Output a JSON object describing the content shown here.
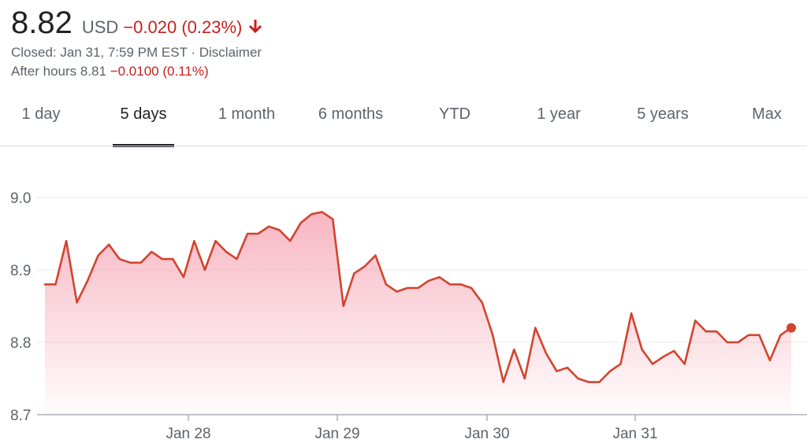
{
  "quote": {
    "price": "8.82",
    "currency": "USD",
    "change": "−0.020 (0.23%)",
    "closed_label": "Closed: Jan 31, 7:59 PM EST",
    "separator": " · ",
    "disclaimer": "Disclaimer",
    "after_hours_label": "After hours 8.81",
    "after_hours_change": "−0.0100 (0.11%)",
    "negative_color": "#c5221f"
  },
  "tabs": [
    {
      "label": "1 day"
    },
    {
      "label": "5 days",
      "active": true
    },
    {
      "label": "1 month"
    },
    {
      "label": "6 months"
    },
    {
      "label": "YTD"
    },
    {
      "label": "1 year"
    },
    {
      "label": "5 years"
    },
    {
      "label": "Max"
    }
  ],
  "icons": {
    "change_arrow": "arrow-down-icon"
  },
  "chart_data": {
    "type": "area",
    "title": "",
    "xlabel": "",
    "ylabel": "",
    "x_tick_labels": [
      "Jan 28",
      "Jan 29",
      "Jan 30",
      "Jan 31"
    ],
    "y_tick_labels": [
      "8.7",
      "8.8",
      "8.9",
      "9.0"
    ],
    "ylim": [
      8.7,
      9.0
    ],
    "grid": true,
    "line_color": "#d2442e",
    "fill_color": "#f6a9b8",
    "series": [
      {
        "values": [
          8.88,
          8.88,
          8.94,
          8.855,
          8.885,
          8.92,
          8.935,
          8.915,
          8.91,
          8.91,
          8.925,
          8.915,
          8.915,
          8.89,
          8.94,
          8.9,
          8.94,
          8.925,
          8.915,
          8.95,
          8.95,
          8.96,
          8.955,
          8.94,
          8.965,
          8.977,
          8.98,
          8.97,
          8.85,
          8.895,
          8.905,
          8.92,
          8.88,
          8.87,
          8.875,
          8.875,
          8.885,
          8.89,
          8.88,
          8.88,
          8.875,
          8.855,
          8.81,
          8.745,
          8.79,
          8.75,
          8.82,
          8.785,
          8.76,
          8.765,
          8.75,
          8.745,
          8.745,
          8.76,
          8.77,
          8.84,
          8.79,
          8.77,
          8.78,
          8.788,
          8.77,
          8.83,
          8.815,
          8.815,
          8.8,
          8.8,
          8.81,
          8.81,
          8.775,
          8.81,
          8.82
        ]
      }
    ]
  }
}
